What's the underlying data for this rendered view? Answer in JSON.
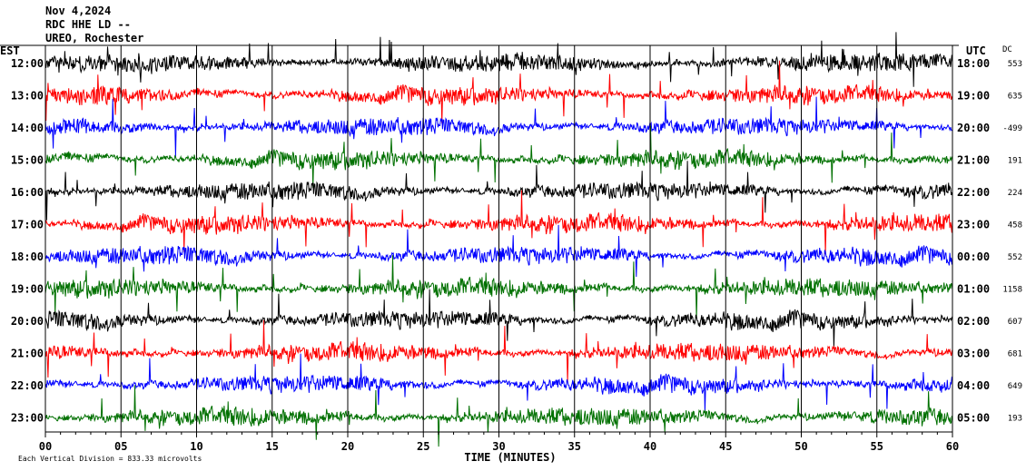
{
  "header": {
    "date": "Nov 4,2024",
    "channel": "RDC HHE LD --",
    "station": "UREO, Rochester"
  },
  "footer": {
    "scale_note": "Each Vertical Division = 833.33 microvolts"
  },
  "chart_data": {
    "type": "line",
    "title": "",
    "xlabel": "TIME (MINUTES)",
    "xlim": [
      0,
      60
    ],
    "x_ticks": [
      "00",
      "05",
      "10",
      "15",
      "20",
      "25",
      "30",
      "35",
      "40",
      "45",
      "50",
      "55",
      "60"
    ],
    "left_axis_label": "EST",
    "right_axis_label": "UTC",
    "dc_label": "DC",
    "series_colors": [
      "#000000",
      "#ff0000",
      "#0000ff",
      "#007000"
    ],
    "rows": [
      {
        "est": "12:00",
        "utc": "18:00",
        "dc": "553"
      },
      {
        "est": "13:00",
        "utc": "19:00",
        "dc": "635"
      },
      {
        "est": "14:00",
        "utc": "20:00",
        "dc": "-499"
      },
      {
        "est": "15:00",
        "utc": "21:00",
        "dc": "191"
      },
      {
        "est": "16:00",
        "utc": "22:00",
        "dc": "224"
      },
      {
        "est": "17:00",
        "utc": "23:00",
        "dc": "458"
      },
      {
        "est": "18:00",
        "utc": "00:00",
        "dc": "552"
      },
      {
        "est": "19:00",
        "utc": "01:00",
        "dc": "1158"
      },
      {
        "est": "20:00",
        "utc": "02:00",
        "dc": "607"
      },
      {
        "est": "21:00",
        "utc": "03:00",
        "dc": "681"
      },
      {
        "est": "22:00",
        "utc": "04:00",
        "dc": "649"
      },
      {
        "est": "23:00",
        "utc": "05:00",
        "dc": "193"
      }
    ]
  }
}
